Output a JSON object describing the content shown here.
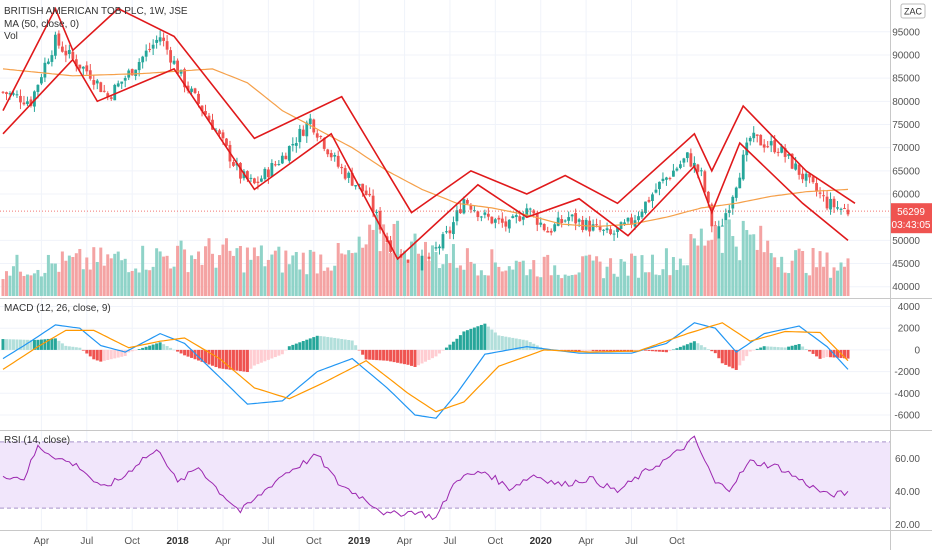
{
  "header": {
    "title": "BRITISH AMERICAN TOB PLC, 1W, JSE",
    "ma_legend": "MA (50, close, 0)",
    "vol_legend": "Vol",
    "macd_legend": "MACD (12, 26, close, 9)",
    "rsi_legend": "RSI (14, close)",
    "currency_badge": "ZAC",
    "last_price": "56299",
    "countdown": "03:43:05"
  },
  "colors": {
    "up": "#26a69a",
    "down": "#ef5350",
    "vol_up": "#8fd3c8",
    "vol_down": "#f4a3a3",
    "ma": "#f5a04a",
    "channel": "#e0191b",
    "macd": "#2196f3",
    "signal": "#ff9800",
    "rsi": "#9c27b0",
    "rsi_band": "#f1e6fb",
    "price_badge": "#ef5350"
  },
  "chart_data": [
    {
      "type": "candlestick",
      "panel": "price",
      "yaxis": {
        "ticks": [
          "95000",
          "90000",
          "85000",
          "80000",
          "75000",
          "70000",
          "65000",
          "60000",
          "55000",
          "50000",
          "45000",
          "40000"
        ],
        "range": [
          38000,
          101000
        ]
      },
      "xaxis": {
        "ticks": [
          "Apr",
          "Jul",
          "Oct",
          "2018",
          "Apr",
          "Jul",
          "Oct",
          "2019",
          "Apr",
          "Jul",
          "Oct",
          "2020",
          "Apr",
          "Jul",
          "Oct"
        ],
        "bold": [
          "2018",
          "2019",
          "2020"
        ]
      },
      "close_anchors": [
        [
          0,
          82000
        ],
        [
          8,
          80000
        ],
        [
          12,
          88000
        ],
        [
          15,
          93000
        ],
        [
          20,
          89000
        ],
        [
          25,
          86000
        ],
        [
          30,
          81000
        ],
        [
          36,
          86000
        ],
        [
          45,
          94000
        ],
        [
          52,
          84000
        ],
        [
          60,
          75000
        ],
        [
          68,
          64000
        ],
        [
          72,
          62000
        ],
        [
          80,
          68000
        ],
        [
          88,
          76000
        ],
        [
          96,
          66000
        ],
        [
          104,
          60000
        ],
        [
          110,
          50000
        ],
        [
          116,
          44000
        ],
        [
          122,
          46000
        ],
        [
          128,
          52000
        ],
        [
          132,
          59000
        ],
        [
          138,
          55000
        ],
        [
          145,
          53000
        ],
        [
          150,
          57000
        ],
        [
          156,
          52000
        ],
        [
          162,
          55000
        ],
        [
          168,
          53000
        ],
        [
          174,
          51000
        ],
        [
          180,
          54000
        ],
        [
          188,
          62000
        ],
        [
          196,
          68000
        ],
        [
          200,
          64000
        ],
        [
          204,
          50000
        ],
        [
          208,
          58000
        ],
        [
          214,
          72000
        ],
        [
          222,
          70000
        ],
        [
          230,
          63000
        ],
        [
          236,
          58000
        ],
        [
          242,
          56299
        ]
      ],
      "ma_series": {
        "name": "MA (50, close, 0)",
        "anchors": [
          [
            0,
            87000
          ],
          [
            20,
            85500
          ],
          [
            40,
            86000
          ],
          [
            60,
            87000
          ],
          [
            70,
            84000
          ],
          [
            80,
            78000
          ],
          [
            90,
            74000
          ],
          [
            100,
            70000
          ],
          [
            110,
            65000
          ],
          [
            120,
            61000
          ],
          [
            130,
            58000
          ],
          [
            140,
            57000
          ],
          [
            150,
            55500
          ],
          [
            160,
            53500
          ],
          [
            170,
            53000
          ],
          [
            180,
            53500
          ],
          [
            190,
            55000
          ],
          [
            200,
            57000
          ],
          [
            210,
            58000
          ],
          [
            220,
            59500
          ],
          [
            230,
            60500
          ],
          [
            242,
            61000
          ]
        ]
      },
      "volume_anchors": [
        [
          0,
          30
        ],
        [
          20,
          35
        ],
        [
          40,
          40
        ],
        [
          60,
          45
        ],
        [
          80,
          38
        ],
        [
          100,
          40
        ],
        [
          110,
          70
        ],
        [
          120,
          45
        ],
        [
          140,
          35
        ],
        [
          160,
          30
        ],
        [
          180,
          32
        ],
        [
          195,
          40
        ],
        [
          204,
          75
        ],
        [
          210,
          65
        ],
        [
          225,
          40
        ],
        [
          242,
          30
        ]
      ]
    },
    {
      "type": "line+histogram",
      "panel": "macd",
      "yaxis": {
        "ticks": [
          "4000",
          "2000",
          "0",
          "-2000",
          "-4000",
          "-6000"
        ],
        "range": [
          -7200,
          4600
        ]
      },
      "macd_anchors": [
        [
          0,
          -800
        ],
        [
          8,
          800
        ],
        [
          15,
          2300
        ],
        [
          22,
          2000
        ],
        [
          28,
          400
        ],
        [
          35,
          -200
        ],
        [
          45,
          1500
        ],
        [
          52,
          600
        ],
        [
          62,
          -2500
        ],
        [
          70,
          -5000
        ],
        [
          80,
          -4700
        ],
        [
          90,
          -2000
        ],
        [
          100,
          -800
        ],
        [
          110,
          -3500
        ],
        [
          118,
          -6000
        ],
        [
          124,
          -6300
        ],
        [
          130,
          -4000
        ],
        [
          138,
          -400
        ],
        [
          150,
          300
        ],
        [
          165,
          -300
        ],
        [
          180,
          -300
        ],
        [
          190,
          600
        ],
        [
          198,
          2500
        ],
        [
          204,
          2000
        ],
        [
          210,
          -200
        ],
        [
          218,
          1500
        ],
        [
          228,
          2200
        ],
        [
          236,
          300
        ],
        [
          242,
          -1800
        ]
      ],
      "signal_anchors": [
        [
          0,
          -1800
        ],
        [
          10,
          300
        ],
        [
          18,
          1800
        ],
        [
          26,
          1800
        ],
        [
          36,
          200
        ],
        [
          45,
          800
        ],
        [
          52,
          1100
        ],
        [
          62,
          -800
        ],
        [
          72,
          -3500
        ],
        [
          82,
          -4500
        ],
        [
          92,
          -3000
        ],
        [
          104,
          -1000
        ],
        [
          116,
          -4000
        ],
        [
          124,
          -5700
        ],
        [
          132,
          -4800
        ],
        [
          142,
          -1500
        ],
        [
          155,
          0
        ],
        [
          168,
          -200
        ],
        [
          182,
          -100
        ],
        [
          196,
          1500
        ],
        [
          206,
          2500
        ],
        [
          214,
          800
        ],
        [
          224,
          1700
        ],
        [
          234,
          1600
        ],
        [
          242,
          -1000
        ]
      ]
    },
    {
      "type": "line",
      "panel": "rsi",
      "yaxis": {
        "ticks": [
          "60.00",
          "40.00",
          "20.00"
        ],
        "range": [
          18,
          76
        ],
        "band": [
          30,
          70
        ]
      },
      "rsi_anchors": [
        [
          0,
          50
        ],
        [
          6,
          48
        ],
        [
          10,
          67
        ],
        [
          16,
          60
        ],
        [
          22,
          55
        ],
        [
          28,
          42
        ],
        [
          34,
          48
        ],
        [
          40,
          60
        ],
        [
          45,
          65
        ],
        [
          50,
          45
        ],
        [
          56,
          55
        ],
        [
          62,
          40
        ],
        [
          68,
          28
        ],
        [
          72,
          35
        ],
        [
          80,
          50
        ],
        [
          90,
          62
        ],
        [
          96,
          45
        ],
        [
          104,
          35
        ],
        [
          110,
          26
        ],
        [
          118,
          28
        ],
        [
          124,
          24
        ],
        [
          130,
          48
        ],
        [
          138,
          52
        ],
        [
          145,
          42
        ],
        [
          152,
          50
        ],
        [
          160,
          44
        ],
        [
          168,
          48
        ],
        [
          176,
          40
        ],
        [
          184,
          52
        ],
        [
          192,
          62
        ],
        [
          198,
          72
        ],
        [
          204,
          45
        ],
        [
          208,
          42
        ],
        [
          214,
          58
        ],
        [
          222,
          55
        ],
        [
          230,
          45
        ],
        [
          236,
          38
        ],
        [
          242,
          39
        ]
      ]
    }
  ],
  "channels": [
    [
      [
        0,
        78000
      ],
      [
        15,
        100000
      ],
      [
        20,
        91000
      ],
      [
        33,
        100000
      ],
      [
        49,
        94000
      ],
      [
        72,
        72000
      ],
      [
        97,
        81000
      ],
      [
        117,
        56000
      ],
      [
        134,
        65000
      ],
      [
        150,
        60000
      ],
      [
        161,
        64000
      ],
      [
        176,
        58000
      ],
      [
        198,
        73000
      ],
      [
        203,
        65000
      ],
      [
        212,
        79000
      ],
      [
        230,
        65000
      ],
      [
        244,
        58000
      ]
    ],
    [
      [
        0,
        73000
      ],
      [
        20,
        89000
      ],
      [
        27,
        80000
      ],
      [
        49,
        87000
      ],
      [
        72,
        61000
      ],
      [
        94,
        73000
      ],
      [
        113,
        46000
      ],
      [
        136,
        62000
      ],
      [
        150,
        55000
      ],
      [
        165,
        59000
      ],
      [
        179,
        51000
      ],
      [
        198,
        66000
      ],
      [
        203,
        56000
      ],
      [
        211,
        71000
      ],
      [
        229,
        58000
      ],
      [
        242,
        50000
      ]
    ]
  ]
}
